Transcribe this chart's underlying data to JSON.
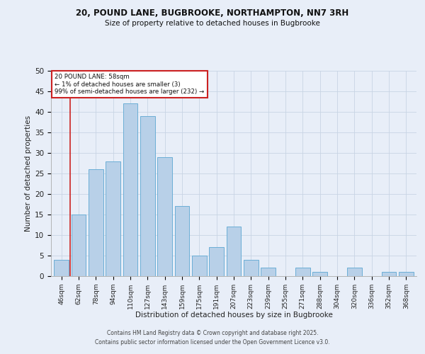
{
  "title_line1": "20, POUND LANE, BUGBROOKE, NORTHAMPTON, NN7 3RH",
  "title_line2": "Size of property relative to detached houses in Bugbrooke",
  "xlabel": "Distribution of detached houses by size in Bugbrooke",
  "ylabel": "Number of detached properties",
  "bar_labels": [
    "46sqm",
    "62sqm",
    "78sqm",
    "94sqm",
    "110sqm",
    "127sqm",
    "143sqm",
    "159sqm",
    "175sqm",
    "191sqm",
    "207sqm",
    "223sqm",
    "239sqm",
    "255sqm",
    "271sqm",
    "288sqm",
    "304sqm",
    "320sqm",
    "336sqm",
    "352sqm",
    "368sqm"
  ],
  "bar_values": [
    4,
    15,
    26,
    28,
    42,
    39,
    29,
    17,
    5,
    7,
    12,
    4,
    2,
    0,
    2,
    1,
    0,
    2,
    0,
    1,
    1
  ],
  "bar_color": "#b8d0e8",
  "bar_edge_color": "#6baed6",
  "grid_color": "#c8d4e4",
  "background_color": "#e8eef8",
  "vline_color": "#cc2222",
  "vline_x": 0.5,
  "annotation_box_text": "20 POUND LANE: 58sqm\n← 1% of detached houses are smaller (3)\n99% of semi-detached houses are larger (232) →",
  "annotation_box_color": "#cc2222",
  "ylim": [
    0,
    50
  ],
  "yticks": [
    0,
    5,
    10,
    15,
    20,
    25,
    30,
    35,
    40,
    45,
    50
  ],
  "footer_line1": "Contains HM Land Registry data © Crown copyright and database right 2025.",
  "footer_line2": "Contains public sector information licensed under the Open Government Licence v3.0."
}
